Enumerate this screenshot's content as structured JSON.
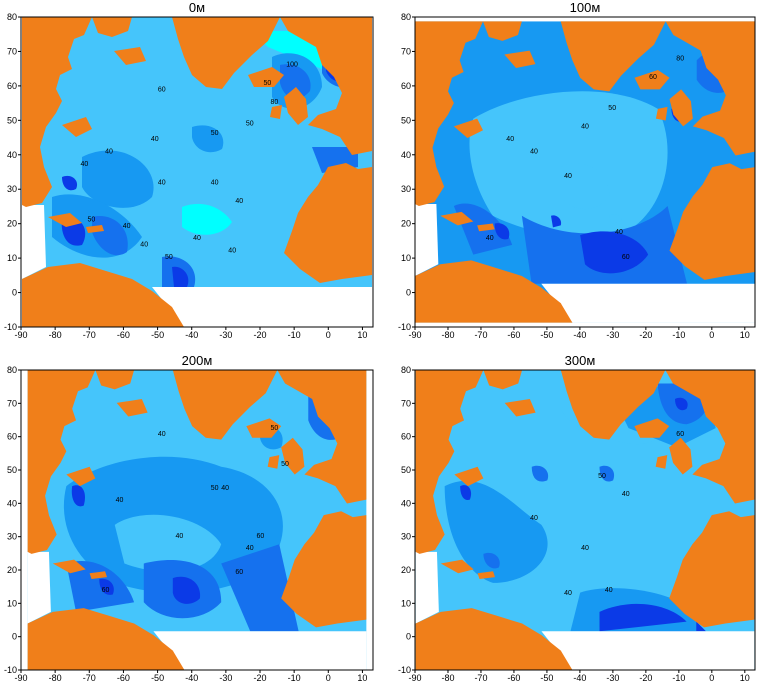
{
  "panels": [
    {
      "title": "0м",
      "contour_labels": [
        "60",
        "40",
        "40",
        "40",
        "40",
        "40",
        "40",
        "40",
        "50",
        "50",
        "50",
        "80",
        "100",
        "50",
        "40",
        "50",
        "40",
        "40"
      ]
    },
    {
      "title": "100м",
      "contour_labels": [
        "40",
        "40",
        "40",
        "40",
        "40",
        "50",
        "60",
        "40",
        "60",
        "80"
      ]
    },
    {
      "title": "200м",
      "contour_labels": [
        "40",
        "40",
        "40",
        "50",
        "40",
        "40",
        "50",
        "60",
        "50",
        "60",
        "60"
      ]
    },
    {
      "title": "300м",
      "contour_labels": [
        "40",
        "40",
        "40",
        "60",
        "40",
        "40",
        "50"
      ]
    }
  ],
  "axes": {
    "x_ticks": [
      "-90",
      "-80",
      "-70",
      "-60",
      "-50",
      "-40",
      "-30",
      "-20",
      "-10",
      "0",
      "10"
    ],
    "y_ticks": [
      "80",
      "70",
      "60",
      "50",
      "40",
      "30",
      "20",
      "10",
      "0",
      "-10"
    ],
    "xlim": [
      -90,
      13
    ],
    "ylim": [
      -10,
      80
    ]
  },
  "colors": {
    "land": "#f07f1a",
    "level_1": "#00ffff",
    "level_2": "#45c5fb",
    "level_3": "#1799f2",
    "level_4": "#1571ee",
    "level_5": "#0b3ae7",
    "contour": "#1a2a66",
    "frame": "#000000",
    "no_data": "#ffffff"
  }
}
